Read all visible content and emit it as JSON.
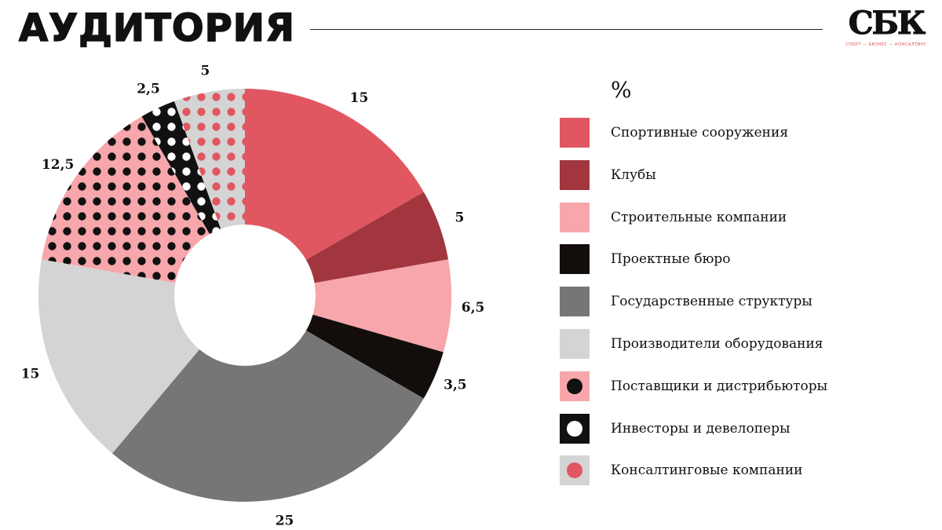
{
  "header": {
    "title": "АУДИТОРИЯ",
    "logo_text": "СБК",
    "logo_tagline": "СПОРТ — БИЗНЕС — КОНСАЛТИНГ"
  },
  "chart_data": {
    "type": "pie",
    "donut": true,
    "unit_label": "%",
    "legend_placement": "right",
    "categories": [
      "Спортивные сооружения",
      "Клубы",
      "Строительные компании",
      "Проектные бюро",
      "Государственные структуры",
      "Производители оборудования",
      "Поставщики и дистрибьюторы",
      "Инвесторы и девелоперы",
      "Консалтинговые компании"
    ],
    "values": [
      15,
      5,
      6.5,
      3.5,
      25,
      15,
      12.5,
      2.5,
      5
    ],
    "value_labels": [
      "15",
      "5",
      "6,5",
      "3,5",
      "25",
      "15",
      "12,5",
      "2,5",
      "5"
    ],
    "colors": [
      "#e05761",
      "#a1363f",
      "#f7a6ab",
      "#130e0b",
      "#767676",
      "#d4d4d4",
      "#f7a6ab",
      "#111111",
      "#d4d4d4"
    ],
    "dot_colors": [
      null,
      null,
      null,
      null,
      null,
      null,
      "#111111",
      "#ffffff",
      "#e05761"
    ]
  }
}
